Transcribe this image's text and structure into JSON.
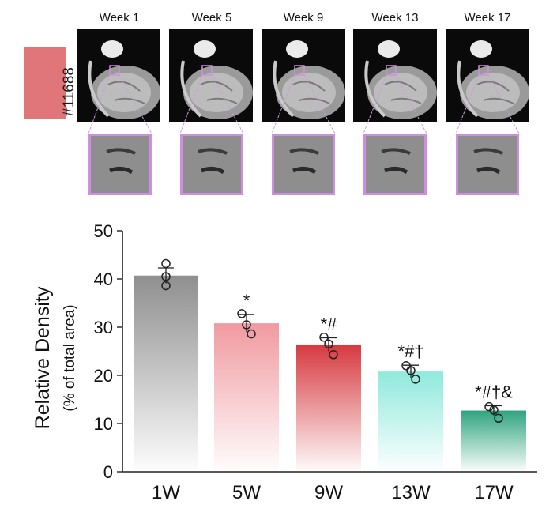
{
  "panel": {
    "subject_id": "#11688",
    "weeks": [
      "Week 1",
      "Week 5",
      "Week 9",
      "Week 13",
      "Week 17"
    ]
  },
  "colors": {
    "zoom_border": "#cf8fe0",
    "badge": "#e0767a"
  },
  "chart_data": {
    "type": "bar",
    "categories": [
      "1W",
      "5W",
      "9W",
      "13W",
      "17W"
    ],
    "values": [
      40.7,
      30.8,
      26.4,
      20.8,
      12.7
    ],
    "errors": [
      1.6,
      1.8,
      1.4,
      1.3,
      1.0
    ],
    "points": [
      [
        43.2,
        40.5,
        38.6
      ],
      [
        32.8,
        30.5,
        28.6
      ],
      [
        27.9,
        26.5,
        24.3
      ],
      [
        22.0,
        21.0,
        19.2
      ],
      [
        13.5,
        12.8,
        11.1
      ]
    ],
    "annotations": [
      "",
      "*",
      "*#",
      "*#†",
      "*#†&"
    ],
    "bar_colors": [
      "#8f8f8f",
      "#f09aa0",
      "#d6393f",
      "#8fe9dc",
      "#2fa47e"
    ],
    "ylabel": "Relative Density",
    "ylabel_sub": "(% of total area)",
    "ylim": [
      0,
      50
    ],
    "yticks": [
      0,
      10,
      20,
      30,
      40,
      50
    ],
    "grid": false
  }
}
